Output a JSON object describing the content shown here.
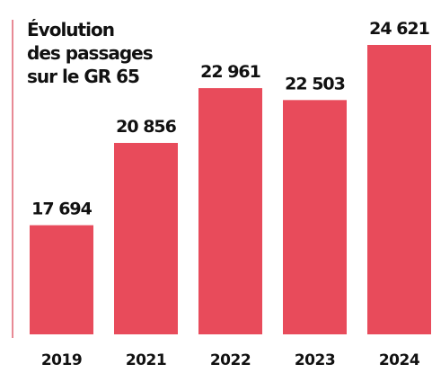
{
  "chart_data": {
    "type": "bar",
    "title": [
      "Évolution",
      "des passages",
      "sur le GR 65"
    ],
    "categories": [
      "2019",
      "2021",
      "2022",
      "2023",
      "2024"
    ],
    "values": [
      17694,
      20856,
      22961,
      22503,
      24621
    ],
    "value_labels": [
      "17 694",
      "20 856",
      "22 961",
      "22 503",
      "24 621"
    ],
    "color": "#e84b5b",
    "ylim": [
      13500,
      24621
    ]
  }
}
